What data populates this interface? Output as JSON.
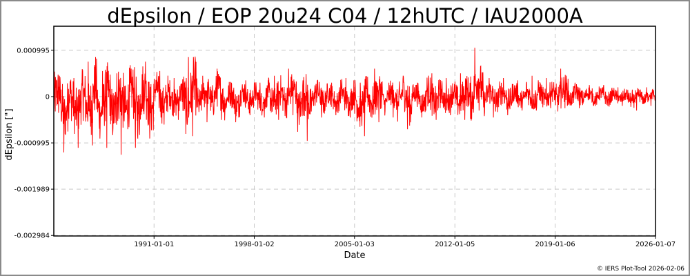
{
  "chart_data": {
    "type": "line",
    "title": "dEpsilon / EOP 20u24 C04 / 12hUTC / IAU2000A",
    "xlabel": "Date",
    "ylabel": "dEpsilon [\"]",
    "xlim": [
      1984.0,
      2026.02
    ],
    "ylim": [
      -0.002984,
      0.00165
    ],
    "grid": true,
    "series_color": "#ff0000",
    "x_ticks": [
      {
        "value": 1991.0,
        "label": "1991-01-01"
      },
      {
        "value": 1998.0,
        "label": "1998-01-02"
      },
      {
        "value": 2005.0,
        "label": "2005-01-03"
      },
      {
        "value": 2012.01,
        "label": "2012-01-05"
      },
      {
        "value": 2019.01,
        "label": "2019-01-06"
      },
      {
        "value": 2026.02,
        "label": "2026-01-07"
      }
    ],
    "y_ticks": [
      {
        "value": 0.000995,
        "label": "0.000995"
      },
      {
        "value": 0,
        "label": "0"
      },
      {
        "value": -0.000995,
        "label": "-0.000995"
      },
      {
        "value": -0.001989,
        "label": "-0.001989"
      },
      {
        "value": -0.002984,
        "label": "-0.002984"
      }
    ],
    "series": [
      {
        "name": "dEpsilon",
        "note": "yearly min/max envelope of daily values",
        "years": [
          1984,
          1985,
          1986,
          1987,
          1988,
          1989,
          1990,
          1991,
          1992,
          1993,
          1994,
          1995,
          1996,
          1997,
          1998,
          1999,
          2000,
          2001,
          2002,
          2003,
          2004,
          2005,
          2006,
          2007,
          2008,
          2009,
          2010,
          2011,
          2012,
          2013,
          2014,
          2015,
          2016,
          2017,
          2018,
          2019,
          2020,
          2021,
          2022,
          2023,
          2024,
          2025
        ],
        "min": [
          -0.0012,
          -0.0011,
          -0.00105,
          -0.0011,
          -0.00125,
          -0.0011,
          -0.0009,
          -0.0006,
          -0.0005,
          -0.00085,
          -0.00055,
          -0.0005,
          -0.00055,
          -0.0004,
          -0.00045,
          -0.0005,
          -0.0004,
          -0.00095,
          -0.00045,
          -0.0004,
          -0.00045,
          -0.00085,
          -0.00055,
          -0.00045,
          -0.0007,
          -0.00045,
          -0.0005,
          -0.0004,
          -0.0005,
          -0.0003,
          -0.00045,
          -0.0004,
          -0.0003,
          -0.0003,
          -0.00025,
          -0.00025,
          -0.00025,
          -0.0002,
          -0.0002,
          -0.0002,
          -0.0003,
          -0.0002
        ],
        "max": [
          0.00045,
          0.0004,
          0.00075,
          0.00055,
          0.0005,
          0.0006,
          0.00075,
          0.00055,
          0.0004,
          0.00085,
          0.00045,
          0.0006,
          0.0003,
          0.00035,
          0.0003,
          0.00045,
          0.0006,
          0.00035,
          0.00035,
          0.0003,
          0.0004,
          0.0003,
          0.0006,
          0.0003,
          0.00045,
          0.0003,
          0.0005,
          0.0004,
          0.0005,
          0.00105,
          0.0004,
          0.0004,
          0.00035,
          0.00045,
          0.0004,
          0.0006,
          0.0003,
          0.00025,
          0.00025,
          0.0002,
          0.00015,
          0.0002
        ]
      }
    ],
    "footer": "© IERS Plot-Tool 2026-02-06"
  }
}
